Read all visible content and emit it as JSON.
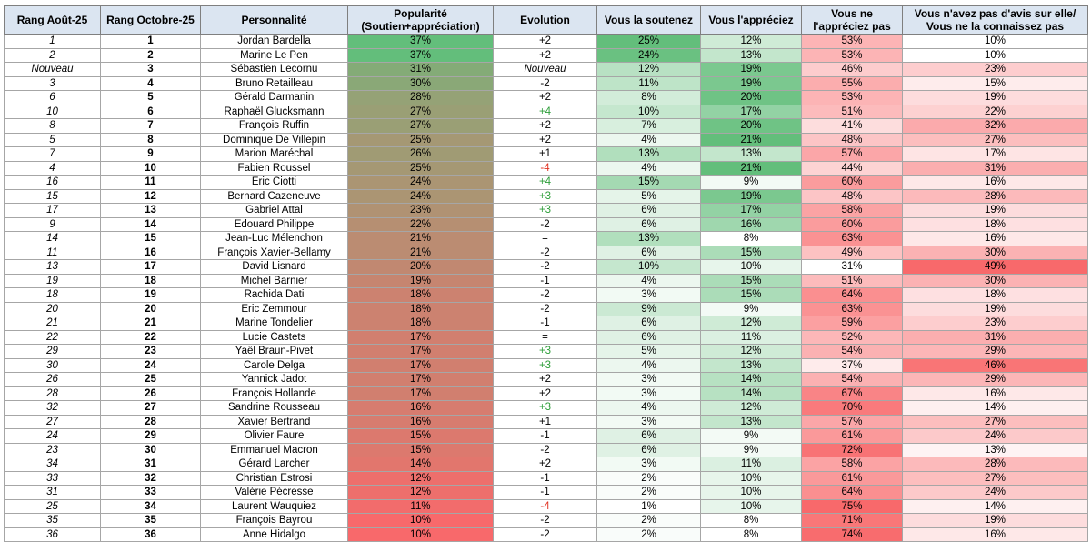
{
  "table": {
    "headers": {
      "rank_aug": "Rang Août-25",
      "rank_oct": "Rang Octobre-25",
      "name": "Personnalité",
      "popularity_l1": "Popularité",
      "popularity_l2": "(Soutien+appréciation)",
      "evolution": "Evolution",
      "support": "Vous la soutenez",
      "like": "Vous l'appréciez",
      "dislike_l1": "Vous ne",
      "dislike_l2": "l'appréciez pas",
      "no_opinion_l1": "Vous n'avez pas d'avis sur elle/",
      "no_opinion_l2": "Vous ne la connaissez pas"
    },
    "rows": [
      {
        "rank_aug": "1",
        "rank_oct": "1",
        "name": "Jordan Bardella",
        "popularity": "37%",
        "evolution": "+2",
        "support": "25%",
        "like": "12%",
        "dislike": "53%",
        "no_opinion": "10%"
      },
      {
        "rank_aug": "2",
        "rank_oct": "2",
        "name": "Marine Le Pen",
        "popularity": "37%",
        "evolution": "+2",
        "support": "24%",
        "like": "13%",
        "dislike": "53%",
        "no_opinion": "10%"
      },
      {
        "rank_aug": "Nouveau",
        "rank_oct": "3",
        "name": "Sébastien Lecornu",
        "popularity": "31%",
        "evolution": "Nouveau",
        "support": "12%",
        "like": "19%",
        "dislike": "46%",
        "no_opinion": "23%"
      },
      {
        "rank_aug": "3",
        "rank_oct": "4",
        "name": "Bruno Retailleau",
        "popularity": "30%",
        "evolution": "-2",
        "support": "11%",
        "like": "19%",
        "dislike": "55%",
        "no_opinion": "15%"
      },
      {
        "rank_aug": "6",
        "rank_oct": "5",
        "name": "Gérald Darmanin",
        "popularity": "28%",
        "evolution": "+2",
        "support": "8%",
        "like": "20%",
        "dislike": "53%",
        "no_opinion": "19%"
      },
      {
        "rank_aug": "10",
        "rank_oct": "6",
        "name": "Raphaël Glucksmann",
        "popularity": "27%",
        "evolution": "+4",
        "support": "10%",
        "like": "17%",
        "dislike": "51%",
        "no_opinion": "22%"
      },
      {
        "rank_aug": "8",
        "rank_oct": "7",
        "name": "François Ruffin",
        "popularity": "27%",
        "evolution": "+2",
        "support": "7%",
        "like": "20%",
        "dislike": "41%",
        "no_opinion": "32%"
      },
      {
        "rank_aug": "5",
        "rank_oct": "8",
        "name": "Dominique De Villepin",
        "popularity": "25%",
        "evolution": "+2",
        "support": "4%",
        "like": "21%",
        "dislike": "48%",
        "no_opinion": "27%"
      },
      {
        "rank_aug": "7",
        "rank_oct": "9",
        "name": "Marion Maréchal",
        "popularity": "26%",
        "evolution": "+1",
        "support": "13%",
        "like": "13%",
        "dislike": "57%",
        "no_opinion": "17%"
      },
      {
        "rank_aug": "4",
        "rank_oct": "10",
        "name": "Fabien Roussel",
        "popularity": "25%",
        "evolution": "-4",
        "support": "4%",
        "like": "21%",
        "dislike": "44%",
        "no_opinion": "31%"
      },
      {
        "rank_aug": "16",
        "rank_oct": "11",
        "name": "Eric Ciotti",
        "popularity": "24%",
        "evolution": "+4",
        "support": "15%",
        "like": "9%",
        "dislike": "60%",
        "no_opinion": "16%"
      },
      {
        "rank_aug": "15",
        "rank_oct": "12",
        "name": "Bernard Cazeneuve",
        "popularity": "24%",
        "evolution": "+3",
        "support": "5%",
        "like": "19%",
        "dislike": "48%",
        "no_opinion": "28%"
      },
      {
        "rank_aug": "17",
        "rank_oct": "13",
        "name": "Gabriel Attal",
        "popularity": "23%",
        "evolution": "+3",
        "support": "6%",
        "like": "17%",
        "dislike": "58%",
        "no_opinion": "19%"
      },
      {
        "rank_aug": "9",
        "rank_oct": "14",
        "name": "Edouard Philippe",
        "popularity": "22%",
        "evolution": "-2",
        "support": "6%",
        "like": "16%",
        "dislike": "60%",
        "no_opinion": "18%"
      },
      {
        "rank_aug": "14",
        "rank_oct": "15",
        "name": "Jean-Luc Mélenchon",
        "popularity": "21%",
        "evolution": "=",
        "support": "13%",
        "like": "8%",
        "dislike": "63%",
        "no_opinion": "16%"
      },
      {
        "rank_aug": "11",
        "rank_oct": "16",
        "name": "François Xavier-Bellamy",
        "popularity": "21%",
        "evolution": "-2",
        "support": "6%",
        "like": "15%",
        "dislike": "49%",
        "no_opinion": "30%"
      },
      {
        "rank_aug": "13",
        "rank_oct": "17",
        "name": "David Lisnard",
        "popularity": "20%",
        "evolution": "-2",
        "support": "10%",
        "like": "10%",
        "dislike": "31%",
        "no_opinion": "49%"
      },
      {
        "rank_aug": "19",
        "rank_oct": "18",
        "name": "Michel Barnier",
        "popularity": "19%",
        "evolution": "-1",
        "support": "4%",
        "like": "15%",
        "dislike": "51%",
        "no_opinion": "30%"
      },
      {
        "rank_aug": "18",
        "rank_oct": "19",
        "name": "Rachida Dati",
        "popularity": "18%",
        "evolution": "-2",
        "support": "3%",
        "like": "15%",
        "dislike": "64%",
        "no_opinion": "18%"
      },
      {
        "rank_aug": "20",
        "rank_oct": "20",
        "name": "Eric Zemmour",
        "popularity": "18%",
        "evolution": "-2",
        "support": "9%",
        "like": "9%",
        "dislike": "63%",
        "no_opinion": "19%"
      },
      {
        "rank_aug": "21",
        "rank_oct": "21",
        "name": "Marine Tondelier",
        "popularity": "18%",
        "evolution": "-1",
        "support": "6%",
        "like": "12%",
        "dislike": "59%",
        "no_opinion": "23%"
      },
      {
        "rank_aug": "22",
        "rank_oct": "22",
        "name": "Lucie Castets",
        "popularity": "17%",
        "evolution": "=",
        "support": "6%",
        "like": "11%",
        "dislike": "52%",
        "no_opinion": "31%"
      },
      {
        "rank_aug": "29",
        "rank_oct": "23",
        "name": "Yaël Braun-Pivet",
        "popularity": "17%",
        "evolution": "+3",
        "support": "5%",
        "like": "12%",
        "dislike": "54%",
        "no_opinion": "29%"
      },
      {
        "rank_aug": "30",
        "rank_oct": "24",
        "name": "Carole Delga",
        "popularity": "17%",
        "evolution": "+3",
        "support": "4%",
        "like": "13%",
        "dislike": "37%",
        "no_opinion": "46%"
      },
      {
        "rank_aug": "26",
        "rank_oct": "25",
        "name": "Yannick Jadot",
        "popularity": "17%",
        "evolution": "+2",
        "support": "3%",
        "like": "14%",
        "dislike": "54%",
        "no_opinion": "29%"
      },
      {
        "rank_aug": "28",
        "rank_oct": "26",
        "name": "François Hollande",
        "popularity": "17%",
        "evolution": "+2",
        "support": "3%",
        "like": "14%",
        "dislike": "67%",
        "no_opinion": "16%"
      },
      {
        "rank_aug": "32",
        "rank_oct": "27",
        "name": "Sandrine Rousseau",
        "popularity": "16%",
        "evolution": "+3",
        "support": "4%",
        "like": "12%",
        "dislike": "70%",
        "no_opinion": "14%"
      },
      {
        "rank_aug": "27",
        "rank_oct": "28",
        "name": "Xavier Bertrand",
        "popularity": "16%",
        "evolution": "+1",
        "support": "3%",
        "like": "13%",
        "dislike": "57%",
        "no_opinion": "27%"
      },
      {
        "rank_aug": "24",
        "rank_oct": "29",
        "name": "Olivier Faure",
        "popularity": "15%",
        "evolution": "-1",
        "support": "6%",
        "like": "9%",
        "dislike": "61%",
        "no_opinion": "24%"
      },
      {
        "rank_aug": "23",
        "rank_oct": "30",
        "name": "Emmanuel Macron",
        "popularity": "15%",
        "evolution": "-2",
        "support": "6%",
        "like": "9%",
        "dislike": "72%",
        "no_opinion": "13%"
      },
      {
        "rank_aug": "34",
        "rank_oct": "31",
        "name": "Gérard Larcher",
        "popularity": "14%",
        "evolution": "+2",
        "support": "3%",
        "like": "11%",
        "dislike": "58%",
        "no_opinion": "28%"
      },
      {
        "rank_aug": "33",
        "rank_oct": "32",
        "name": "Christian Estrosi",
        "popularity": "12%",
        "evolution": "-1",
        "support": "2%",
        "like": "10%",
        "dislike": "61%",
        "no_opinion": "27%"
      },
      {
        "rank_aug": "31",
        "rank_oct": "33",
        "name": "Valérie Pécresse",
        "popularity": "12%",
        "evolution": "-1",
        "support": "2%",
        "like": "10%",
        "dislike": "64%",
        "no_opinion": "24%"
      },
      {
        "rank_aug": "25",
        "rank_oct": "34",
        "name": "Laurent Wauquiez",
        "popularity": "11%",
        "evolution": "-4",
        "support": "1%",
        "like": "10%",
        "dislike": "75%",
        "no_opinion": "14%"
      },
      {
        "rank_aug": "35",
        "rank_oct": "35",
        "name": "François Bayrou",
        "popularity": "10%",
        "evolution": "-2",
        "support": "2%",
        "like": "8%",
        "dislike": "71%",
        "no_opinion": "19%"
      },
      {
        "rank_aug": "36",
        "rank_oct": "36",
        "name": "Anne Hidalgo",
        "popularity": "10%",
        "evolution": "-2",
        "support": "2%",
        "like": "8%",
        "dislike": "74%",
        "no_opinion": "16%"
      }
    ]
  },
  "colors": {
    "header_bg": "#dbe5f1",
    "green_high": "#63be7b",
    "red_high": "#f8696b",
    "neutral": "#ffffff",
    "evolution_up": "#2e9e3a",
    "evolution_down": "#e03020"
  }
}
